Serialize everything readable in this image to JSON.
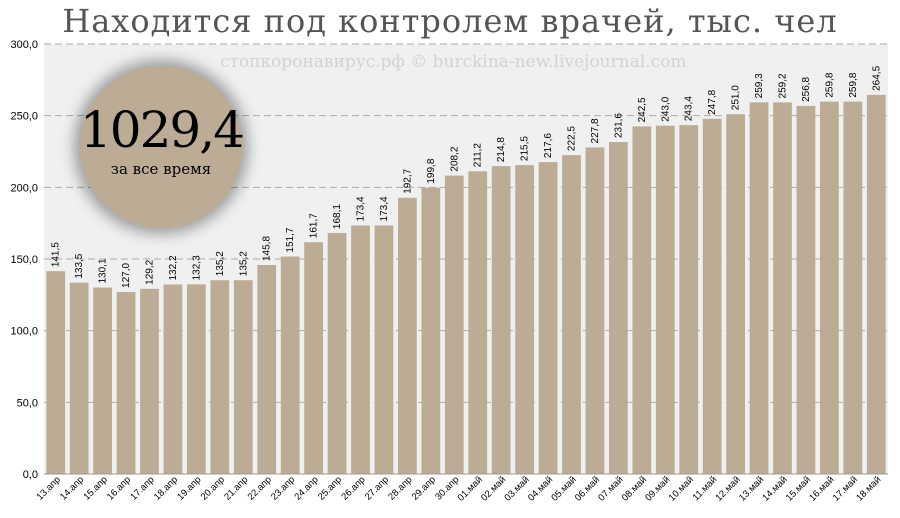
{
  "title": "Находится под контролем врачей, тыс. чел",
  "watermark": "стопкоронавирус.рф © burckina-new.livejournal.com",
  "badge": {
    "total": "1029,4",
    "caption": "за все время"
  },
  "colors": {
    "bar": "#bcac96",
    "plot_bg": "#f0f0f0",
    "grid": "#aaaaaa",
    "text": "#000000",
    "badge": "#bdac95"
  },
  "chart_data": {
    "type": "bar",
    "categories": [
      "13.апр",
      "14.апр",
      "15.апр",
      "16.апр",
      "17.апр",
      "18.апр",
      "19.апр",
      "20.апр",
      "21.апр",
      "22.апр",
      "23.апр",
      "24.апр",
      "25.апр",
      "26.апр",
      "27.апр",
      "28.апр",
      "29.апр",
      "30.апр",
      "01.май",
      "02.май",
      "03.май",
      "04.май",
      "05.май",
      "06.май",
      "07.май",
      "08.май",
      "09.май",
      "10.май",
      "11.май",
      "12.май",
      "13.май",
      "14.май",
      "15.май",
      "16.май",
      "17.май",
      "18.май"
    ],
    "values": [
      141.5,
      133.5,
      130.1,
      127.0,
      129.2,
      132.2,
      132.3,
      135.2,
      135.2,
      145.8,
      151.7,
      161.7,
      168.1,
      173.4,
      173.4,
      192.7,
      199.8,
      208.2,
      211.2,
      214.8,
      215.5,
      217.6,
      222.5,
      227.8,
      231.6,
      242.5,
      243.0,
      243.4,
      247.8,
      251.0,
      259.3,
      259.2,
      256.8,
      259.8,
      259.8,
      264.5
    ],
    "value_labels": [
      "141,5",
      "133,5",
      "130,1",
      "127,0",
      "129,2",
      "132,2",
      "132,3",
      "135,2",
      "135,2",
      "145,8",
      "151,7",
      "161,7",
      "168,1",
      "173,4",
      "173,4",
      "192,7",
      "199,8",
      "208,2",
      "211,2",
      "214,8",
      "215,5",
      "217,6",
      "222,5",
      "227,8",
      "231,6",
      "242,5",
      "243,0",
      "243,4",
      "247,8",
      "251,0",
      "259,3",
      "259,2",
      "256,8",
      "259,8",
      "259,8",
      "264,5"
    ],
    "yticks": [
      0,
      50,
      100,
      150,
      200,
      250,
      300
    ],
    "ytick_labels": [
      "0,0",
      "50,0",
      "100,0",
      "150,0",
      "200,0",
      "250,0",
      "300,0"
    ],
    "ylim": [
      0,
      300
    ],
    "grid": "horizontal dashed",
    "legend": "none"
  }
}
